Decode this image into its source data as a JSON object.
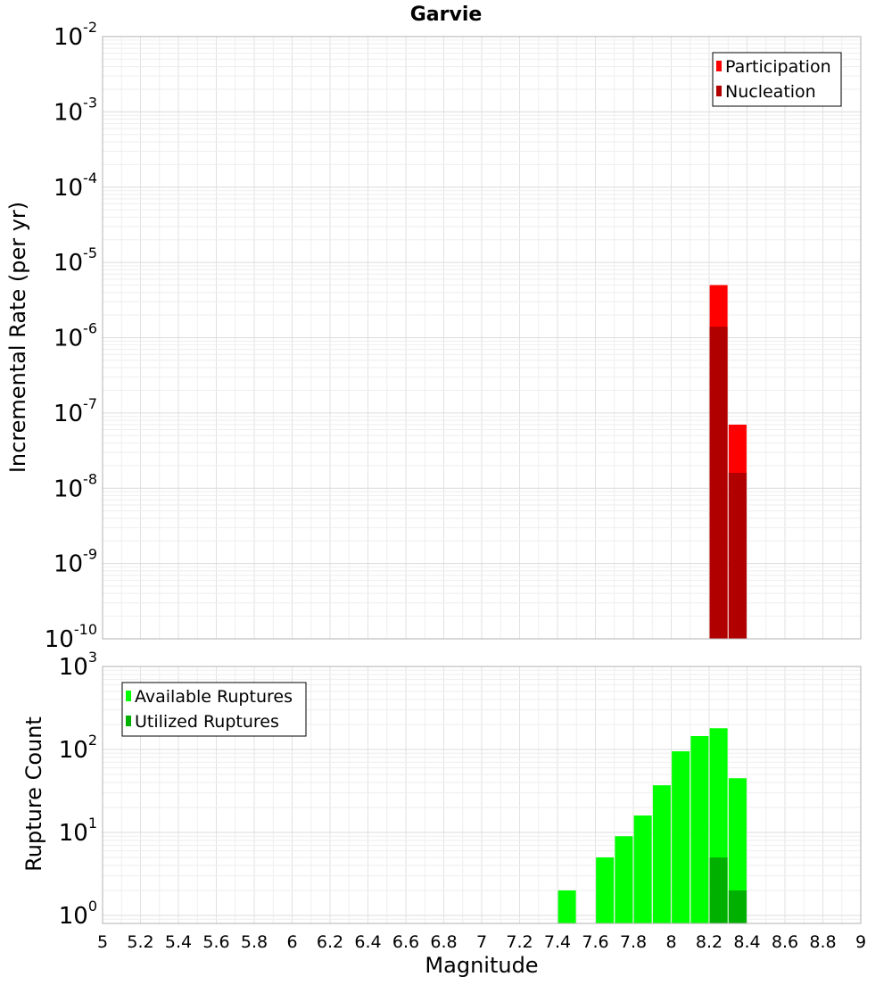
{
  "chart_data": [
    {
      "type": "bar",
      "title": "Garvie",
      "ylabel": "Incremental Rate (per yr)",
      "xlabel": "",
      "xlim": [
        5,
        9
      ],
      "ylim": [
        1e-10,
        0.01
      ],
      "yscale": "log",
      "y_ticks": [
        {
          "base": "10",
          "exp": "-10",
          "value": 1e-10
        },
        {
          "base": "10",
          "exp": "-9",
          "value": 1e-09
        },
        {
          "base": "10",
          "exp": "-8",
          "value": 1e-08
        },
        {
          "base": "10",
          "exp": "-7",
          "value": 1e-07
        },
        {
          "base": "10",
          "exp": "-6",
          "value": 1e-06
        },
        {
          "base": "10",
          "exp": "-5",
          "value": 1e-05
        },
        {
          "base": "10",
          "exp": "-4",
          "value": 0.0001
        },
        {
          "base": "10",
          "exp": "-3",
          "value": 0.001
        },
        {
          "base": "10",
          "exp": "-2",
          "value": 0.01
        }
      ],
      "grid": true,
      "legend_position": "top-right",
      "legend": [
        {
          "label": "Participation",
          "color": "#ff0000"
        },
        {
          "label": "Nucleation",
          "color": "#b00000"
        }
      ],
      "series": [
        {
          "name": "Participation",
          "color": "#ff0000",
          "x": [
            8.25,
            8.35
          ],
          "values": [
            5e-06,
            7e-08
          ]
        },
        {
          "name": "Nucleation",
          "color": "#b00000",
          "x": [
            8.25,
            8.35
          ],
          "values": [
            1.4e-06,
            1.6e-08
          ]
        }
      ]
    },
    {
      "type": "bar",
      "title": "",
      "ylabel": "Rupture Count",
      "xlabel": "Magnitude",
      "xlim": [
        5,
        9
      ],
      "ylim": [
        0.8,
        1000
      ],
      "yscale": "log",
      "y_ticks": [
        {
          "base": "10",
          "exp": "0",
          "value": 1
        },
        {
          "base": "10",
          "exp": "1",
          "value": 10
        },
        {
          "base": "10",
          "exp": "2",
          "value": 100
        },
        {
          "base": "10",
          "exp": "3",
          "value": 1000
        }
      ],
      "x_ticks": [
        "5",
        "5.2",
        "5.4",
        "5.6",
        "5.8",
        "6",
        "6.2",
        "6.4",
        "6.6",
        "6.8",
        "7",
        "7.2",
        "7.4",
        "7.6",
        "7.8",
        "8",
        "8.2",
        "8.4",
        "8.6",
        "8.8",
        "9"
      ],
      "grid": true,
      "legend_position": "top-left",
      "legend": [
        {
          "label": "Available Ruptures",
          "color": "#00ff00"
        },
        {
          "label": "Utilized Ruptures",
          "color": "#00b000"
        }
      ],
      "series": [
        {
          "name": "Available Ruptures",
          "color": "#00ff00",
          "x": [
            7.45,
            7.65,
            7.75,
            7.85,
            7.95,
            8.05,
            8.15,
            8.25,
            8.35
          ],
          "values": [
            2,
            5,
            9,
            16,
            37,
            95,
            145,
            180,
            45
          ]
        },
        {
          "name": "Utilized Ruptures",
          "color": "#00b000",
          "x": [
            8.25,
            8.35
          ],
          "values": [
            5,
            2
          ]
        }
      ]
    }
  ]
}
